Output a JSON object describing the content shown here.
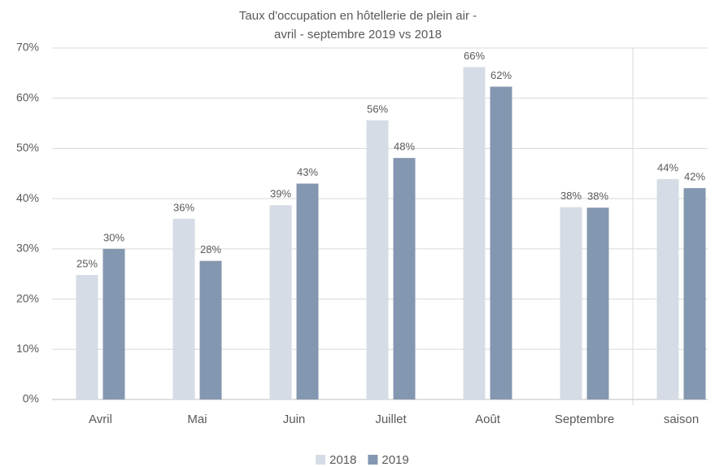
{
  "chart_data": {
    "type": "bar",
    "title": [
      "Taux d'occupation en hôtellerie de plein air -",
      "avril - septembre 2019 vs 2018"
    ],
    "categories": [
      "Avril",
      "Mai",
      "Juin",
      "Juillet",
      "Août",
      "Septembre",
      "saison"
    ],
    "series": [
      {
        "name": "2018",
        "color": "#d6dce5",
        "values": [
          24.8,
          36,
          38.7,
          55.6,
          66.2,
          38.3,
          43.9
        ],
        "value_labels": [
          "25%",
          "36%",
          "39%",
          "56%",
          "66%",
          "38%",
          "44%"
        ]
      },
      {
        "name": "2019",
        "color": "#8497b0",
        "values": [
          30,
          27.6,
          43,
          48.1,
          62.3,
          38.2,
          42.1
        ],
        "value_labels": [
          "30%",
          "28%",
          "43%",
          "48%",
          "62%",
          "38%",
          "42%"
        ]
      }
    ],
    "ylim": [
      0,
      70
    ],
    "yticks": [
      {
        "value": 0,
        "label": "0%"
      },
      {
        "value": 10,
        "label": "10%"
      },
      {
        "value": 20,
        "label": "20%"
      },
      {
        "value": 30,
        "label": "30%"
      },
      {
        "value": 40,
        "label": "40%"
      },
      {
        "value": 50,
        "label": "50%"
      },
      {
        "value": 60,
        "label": "60%"
      },
      {
        "value": 70,
        "label": "70%"
      }
    ],
    "grid": true,
    "legend": "bottom"
  }
}
